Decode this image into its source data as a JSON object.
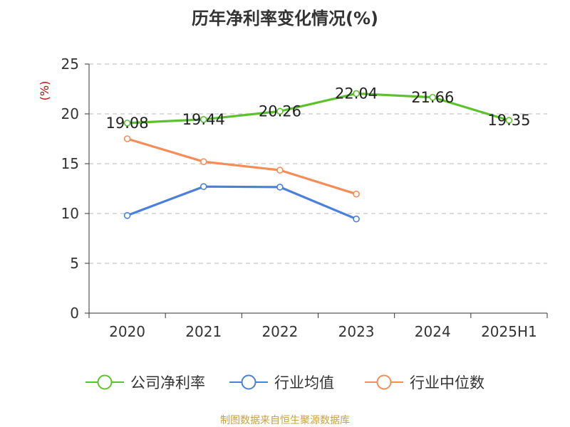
{
  "chart_data": {
    "type": "line",
    "title": "历年净利率变化情况(%)",
    "ylabel": "(%)",
    "categories": [
      "2020",
      "2021",
      "2022",
      "2023",
      "2024",
      "2025H1"
    ],
    "ylim": [
      0,
      25
    ],
    "yticks": [
      0,
      5,
      10,
      15,
      20,
      25
    ],
    "grid": true,
    "legend_position": "bottom",
    "series": [
      {
        "name": "公司净利率",
        "color": "#5cc22c",
        "values": [
          19.08,
          19.44,
          20.26,
          22.04,
          21.66,
          19.35
        ],
        "labels": [
          "19.08",
          "19.44",
          "20.26",
          "22.04",
          "21.66",
          "19.35"
        ]
      },
      {
        "name": "行业均值",
        "color": "#4a7fdc",
        "values": [
          9.8,
          12.7,
          12.65,
          9.45,
          null,
          null
        ]
      },
      {
        "name": "行业中位数",
        "color": "#f68c56",
        "values": [
          17.5,
          15.2,
          14.35,
          11.95,
          null,
          null
        ]
      }
    ]
  },
  "source_note": "制图数据来自恒生聚源数据库"
}
